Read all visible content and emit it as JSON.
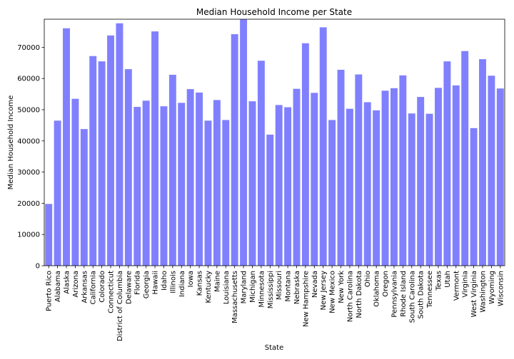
{
  "chart_data": {
    "type": "bar",
    "title": "Median Household Income per State",
    "xlabel": "State",
    "ylabel": "Median Household Income",
    "ylim": [
      0,
      79000
    ],
    "yticks": [
      0,
      10000,
      20000,
      30000,
      40000,
      50000,
      60000,
      70000
    ],
    "grid": false,
    "bar_color": "#8080ff",
    "categories": [
      "Puerto Rico",
      "Alabama",
      "Alaska",
      "Arizona",
      "Arkansas",
      "California",
      "Colorado",
      "Connecticut",
      "District of Columbia",
      "Delaware",
      "Florida",
      "Georgia",
      "Hawaii",
      "Idaho",
      "Illinois",
      "Indiana",
      "Iowa",
      "Kansas",
      "Kentucky",
      "Maine",
      "Louisiana",
      "Massachusetts",
      "Maryland",
      "Michigan",
      "Minnesota",
      "Mississippi",
      "Missouri",
      "Montana",
      "Nebraska",
      "New Hampshire",
      "Nevada",
      "New Jersey",
      "New Mexico",
      "New York",
      "North Carolina",
      "North Dakota",
      "Ohio",
      "Oklahoma",
      "Oregon",
      "Pennsylvania",
      "Rhode Island",
      "South Carolina",
      "South Dakota",
      "Tennessee",
      "Texas",
      "Utah",
      "Vermont",
      "Virginia",
      "West Virginia",
      "Washington",
      "Wyoming",
      "Wisconsin"
    ],
    "values": [
      19800,
      46500,
      76100,
      53500,
      43800,
      67200,
      65500,
      73800,
      77700,
      63000,
      50900,
      52900,
      75100,
      51100,
      61200,
      52200,
      56600,
      55500,
      46500,
      53100,
      46700,
      74200,
      78900,
      52700,
      65700,
      42000,
      51500,
      50800,
      56700,
      71300,
      55400,
      76400,
      46700,
      62800,
      50300,
      61300,
      52400,
      49800,
      56100,
      56900,
      61000,
      48800,
      54100,
      48700,
      57000,
      65500,
      57800,
      68800,
      44100,
      66200,
      60900,
      56800
    ]
  }
}
